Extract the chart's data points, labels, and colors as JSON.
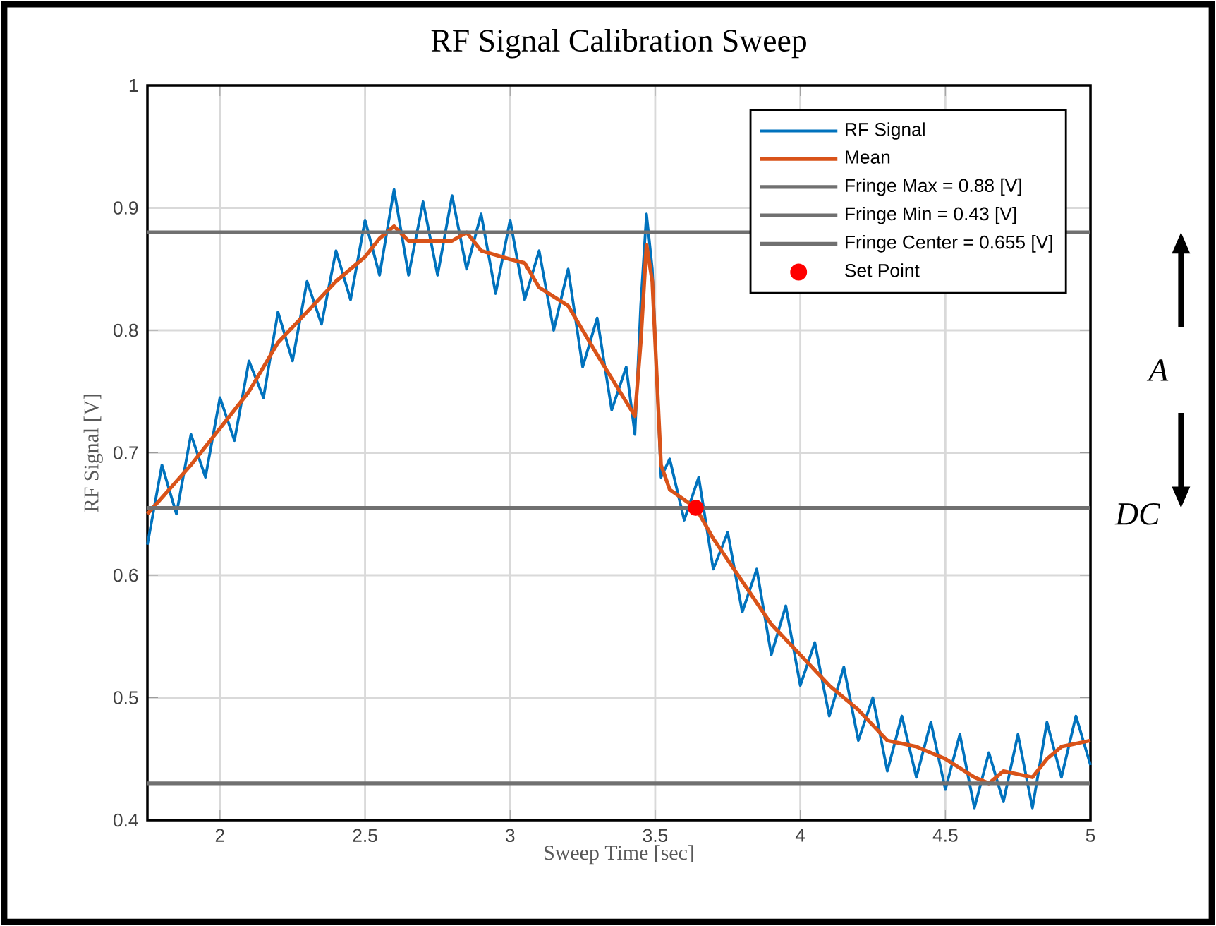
{
  "chart_data": {
    "type": "line",
    "title": "RF Signal Calibration Sweep",
    "xlabel": "Sweep Time [sec]",
    "ylabel": "RF Signal [V]",
    "xlim": [
      1.75,
      5
    ],
    "ylim": [
      0.4,
      1
    ],
    "xticks": [
      2,
      2.5,
      3,
      3.5,
      4,
      4.5,
      5
    ],
    "yticks": [
      0.4,
      0.5,
      0.6,
      0.7,
      0.8,
      0.9,
      1
    ],
    "grid": true,
    "legend": "top right",
    "line_style": "solid",
    "series": [
      {
        "name": "RF Signal",
        "color": "#0072bd",
        "x": [
          1.75,
          1.8,
          1.85,
          1.9,
          1.95,
          2.0,
          2.05,
          2.1,
          2.15,
          2.2,
          2.25,
          2.3,
          2.35,
          2.4,
          2.45,
          2.5,
          2.55,
          2.6,
          2.65,
          2.7,
          2.75,
          2.8,
          2.85,
          2.9,
          2.95,
          3.0,
          3.05,
          3.1,
          3.15,
          3.2,
          3.25,
          3.3,
          3.35,
          3.4,
          3.43,
          3.45,
          3.47,
          3.49,
          3.52,
          3.55,
          3.6,
          3.65,
          3.7,
          3.75,
          3.8,
          3.85,
          3.9,
          3.95,
          4.0,
          4.05,
          4.1,
          4.15,
          4.2,
          4.25,
          4.3,
          4.35,
          4.4,
          4.45,
          4.5,
          4.55,
          4.6,
          4.65,
          4.7,
          4.75,
          4.8,
          4.85,
          4.9,
          4.95,
          5.0
        ],
        "values": [
          0.625,
          0.69,
          0.65,
          0.715,
          0.68,
          0.745,
          0.71,
          0.775,
          0.745,
          0.815,
          0.775,
          0.84,
          0.805,
          0.865,
          0.825,
          0.89,
          0.845,
          0.915,
          0.845,
          0.905,
          0.845,
          0.91,
          0.85,
          0.895,
          0.83,
          0.89,
          0.825,
          0.865,
          0.8,
          0.85,
          0.77,
          0.81,
          0.735,
          0.77,
          0.715,
          0.82,
          0.895,
          0.85,
          0.68,
          0.695,
          0.645,
          0.68,
          0.605,
          0.635,
          0.57,
          0.605,
          0.535,
          0.575,
          0.51,
          0.545,
          0.485,
          0.525,
          0.465,
          0.5,
          0.44,
          0.485,
          0.435,
          0.48,
          0.425,
          0.47,
          0.41,
          0.455,
          0.415,
          0.47,
          0.41,
          0.48,
          0.435,
          0.485,
          0.445
        ]
      },
      {
        "name": "Mean",
        "color": "#d95319",
        "x": [
          1.75,
          1.9,
          2.0,
          2.1,
          2.2,
          2.3,
          2.4,
          2.5,
          2.55,
          2.6,
          2.65,
          2.8,
          2.85,
          2.9,
          3.0,
          3.05,
          3.1,
          3.2,
          3.3,
          3.43,
          3.45,
          3.47,
          3.49,
          3.52,
          3.55,
          3.64,
          3.7,
          3.8,
          3.9,
          4.0,
          4.1,
          4.2,
          4.3,
          4.4,
          4.5,
          4.6,
          4.65,
          4.7,
          4.8,
          4.85,
          4.9,
          5.0
        ],
        "values": [
          0.65,
          0.69,
          0.72,
          0.75,
          0.79,
          0.815,
          0.84,
          0.86,
          0.875,
          0.885,
          0.873,
          0.873,
          0.88,
          0.865,
          0.858,
          0.855,
          0.835,
          0.82,
          0.78,
          0.73,
          0.79,
          0.87,
          0.84,
          0.69,
          0.67,
          0.655,
          0.63,
          0.595,
          0.56,
          0.535,
          0.51,
          0.49,
          0.465,
          0.46,
          0.45,
          0.435,
          0.43,
          0.44,
          0.435,
          0.45,
          0.46,
          0.465
        ]
      },
      {
        "name": "Set Point",
        "type": "scatter",
        "marker": "circle",
        "color": "#ff0000",
        "x": [
          3.64
        ],
        "values": [
          0.655
        ]
      }
    ],
    "ref_lines": [
      {
        "axis": "y",
        "value": 0.88,
        "label": "Fringe Max = 0.88 [V]",
        "color": "#707070"
      },
      {
        "axis": "y",
        "value": 0.43,
        "label": "Fringe Min = 0.43 [V]",
        "color": "#707070"
      },
      {
        "axis": "y",
        "value": 0.655,
        "label": "Fringe Center = 0.655 [V]",
        "color": "#707070"
      }
    ],
    "annotations": [
      "A",
      "DC"
    ]
  }
}
